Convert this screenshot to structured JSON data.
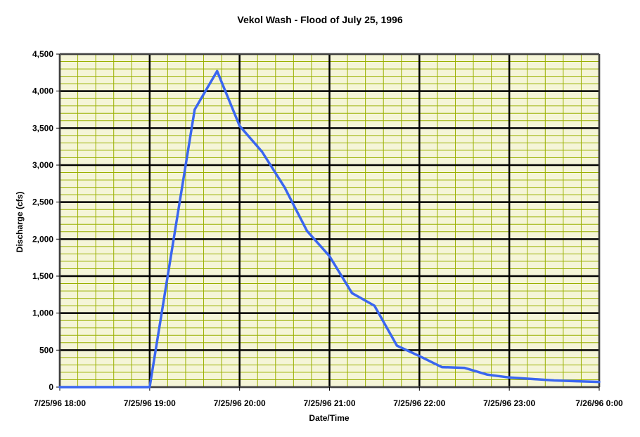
{
  "chart_data": {
    "type": "line",
    "title": "Vekol Wash - Flood of July 25, 1996",
    "xlabel": "Date/Time",
    "ylabel": "Discharge (cfs)",
    "ylim": [
      0,
      4500
    ],
    "yticks": [
      0,
      500,
      1000,
      1500,
      2000,
      2500,
      3000,
      3500,
      4000,
      4500
    ],
    "ytick_labels": [
      "0",
      "500",
      "1,000",
      "1,500",
      "2,000",
      "2,500",
      "3,000",
      "3,500",
      "4,000",
      "4,500"
    ],
    "xlim": [
      "7/25/96 18:00",
      "7/26/96 0:00"
    ],
    "xtick_labels": [
      "7/25/96 18:00",
      "7/25/96 19:00",
      "7/25/96 20:00",
      "7/25/96 21:00",
      "7/25/96 22:00",
      "7/25/96 23:00",
      "7/26/96 0:00"
    ],
    "grid": true,
    "plot_background": "#f5f5d8",
    "major_grid_color": "#000000",
    "minor_grid_color": "#9ab000",
    "series": [
      {
        "color": "#3a66f0",
        "x": [
          "7/25/96 18:00",
          "7/25/96 19:00",
          "7/25/96 19:30",
          "7/25/96 19:45",
          "7/25/96 20:00",
          "7/25/96 20:15",
          "7/25/96 20:30",
          "7/25/96 20:45",
          "7/25/96 21:00",
          "7/25/96 21:15",
          "7/25/96 21:30",
          "7/25/96 21:45",
          "7/25/96 22:00",
          "7/25/96 22:15",
          "7/25/96 22:30",
          "7/25/96 22:45",
          "7/25/96 23:00",
          "7/25/96 23:15",
          "7/25/96 23:30",
          "7/25/96 23:45",
          "7/26/96 0:00"
        ],
        "values": [
          0,
          0,
          3750,
          4270,
          3530,
          3180,
          2700,
          2110,
          1770,
          1270,
          1100,
          560,
          420,
          270,
          260,
          170,
          130,
          110,
          90,
          80,
          70
        ]
      }
    ]
  }
}
